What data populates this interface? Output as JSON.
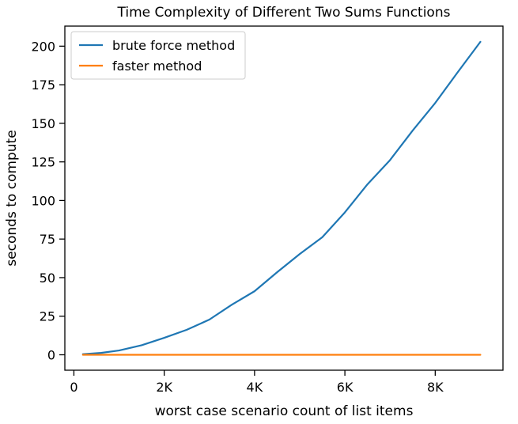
{
  "chart_data": {
    "type": "line",
    "title": "Time Complexity of Different Two Sums Functions",
    "xlabel": "worst case scenario count of list items",
    "ylabel": "seconds to compute",
    "xlim": [
      -200,
      9500
    ],
    "ylim": [
      -10,
      213
    ],
    "x_ticks": [
      {
        "value": 0,
        "label": "0"
      },
      {
        "value": 2000,
        "label": "2K"
      },
      {
        "value": 4000,
        "label": "4K"
      },
      {
        "value": 6000,
        "label": "6K"
      },
      {
        "value": 8000,
        "label": "8K"
      }
    ],
    "y_ticks": [
      {
        "value": 0,
        "label": "0"
      },
      {
        "value": 25,
        "label": "25"
      },
      {
        "value": 50,
        "label": "50"
      },
      {
        "value": 75,
        "label": "75"
      },
      {
        "value": 100,
        "label": "100"
      },
      {
        "value": 125,
        "label": "125"
      },
      {
        "value": 150,
        "label": "150"
      },
      {
        "value": 175,
        "label": "175"
      },
      {
        "value": 200,
        "label": "200"
      }
    ],
    "grid": false,
    "legend_position": "top-left",
    "series": [
      {
        "name": "brute force method",
        "color": "#1f77b4",
        "x": [
          200,
          600,
          1000,
          1500,
          2000,
          2500,
          3000,
          3500,
          4000,
          4500,
          5000,
          5500,
          6000,
          6500,
          7000,
          7500,
          8000,
          8500,
          9000
        ],
        "y": [
          0.4,
          1.2,
          2.8,
          6.2,
          11,
          16.2,
          22.8,
          32.5,
          41.2,
          53.5,
          65.3,
          76.2,
          92.3,
          110.5,
          126.2,
          145.3,
          163.2,
          183.2,
          202.8
        ]
      },
      {
        "name": "faster method",
        "color": "#ff7f0e",
        "x": [
          200,
          600,
          1000,
          1500,
          2000,
          2500,
          3000,
          3500,
          4000,
          4500,
          5000,
          5500,
          6000,
          6500,
          7000,
          7500,
          8000,
          8500,
          9000
        ],
        "y": [
          0,
          0,
          0,
          0,
          0,
          0,
          0,
          0,
          0,
          0,
          0,
          0,
          0,
          0,
          0,
          0,
          0,
          0,
          0
        ]
      }
    ]
  }
}
